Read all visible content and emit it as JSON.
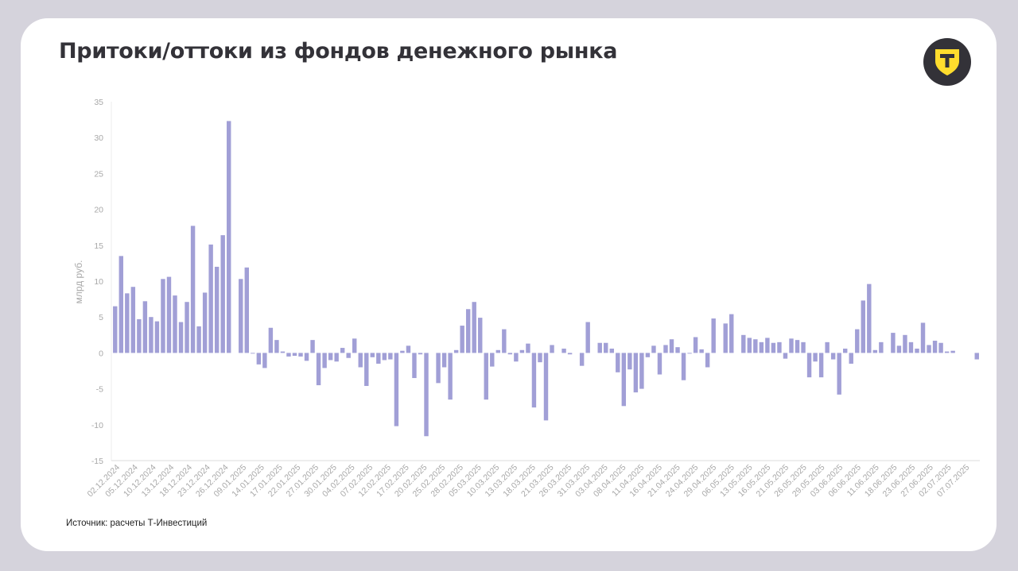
{
  "title": "Притоки/оттоки из фондов денежного рынка",
  "source": "Источник: расчеты Т-Инвестиций",
  "colors": {
    "bar": "#a19fd6",
    "background": "#d5d3dc",
    "card": "#ffffff",
    "text": "#333238",
    "logo_bg": "#333238",
    "logo_shield": "#ffdd2d"
  },
  "logo_icon": "t-bank-shield-icon",
  "chart_data": {
    "type": "bar",
    "title": "",
    "xlabel": "",
    "ylabel": "млрд руб.",
    "ylim": [
      -15,
      35
    ],
    "yticks": [
      35,
      30,
      25,
      20,
      15,
      10,
      5,
      0,
      -5,
      -10,
      -15
    ],
    "grid": false,
    "legend": "none",
    "x_tick_labels": [
      "02.12.2024",
      "05.12.2024",
      "10.12.2024",
      "13.12.2024",
      "18.12.2024",
      "23.12.2024",
      "26.12.2024",
      "09.01.2025",
      "14.01.2025",
      "17.01.2025",
      "22.01.2025",
      "27.01.2025",
      "30.01.2025",
      "04.02.2025",
      "07.02.2025",
      "12.02.2025",
      "17.02.2025",
      "20.02.2025",
      "25.02.2025",
      "28.02.2025",
      "05.03.2025",
      "10.03.2025",
      "13.03.2025",
      "18.03.2025",
      "21.03.2025",
      "26.03.2025",
      "31.03.2025",
      "03.04.2025",
      "08.04.2025",
      "11.04.2025",
      "16.04.2025",
      "21.04.2025",
      "24.04.2025",
      "29.04.2025",
      "06.05.2025",
      "13.05.2025",
      "16.05.2025",
      "21.05.2025",
      "26.05.2025",
      "29.05.2025",
      "03.06.2025",
      "06.06.2025",
      "11.06.2025",
      "18.06.2025",
      "23.06.2025",
      "27.06.2025",
      "02.07.2025",
      "07.07.2025"
    ],
    "values": [
      6.5,
      13.5,
      8.3,
      9.2,
      4.7,
      7.2,
      5.0,
      4.4,
      10.3,
      10.6,
      8.0,
      4.3,
      7.1,
      17.7,
      3.7,
      8.4,
      15.1,
      12.0,
      16.4,
      32.3,
      null,
      10.3,
      11.9,
      -0.1,
      -1.6,
      -2.1,
      3.5,
      1.8,
      0.2,
      -0.5,
      -0.4,
      -0.5,
      -1.1,
      1.8,
      -4.5,
      -2.1,
      -1.0,
      -1.2,
      0.7,
      -0.7,
      2.0,
      -2.0,
      -4.6,
      -0.6,
      -1.5,
      -1.0,
      -0.9,
      -10.2,
      0.3,
      1.0,
      -3.5,
      -0.2,
      -11.6,
      null,
      -4.2,
      -2.0,
      -6.5,
      0.4,
      3.8,
      6.1,
      7.1,
      4.9,
      -6.5,
      -1.9,
      0.4,
      3.3,
      -0.2,
      -1.2,
      0.4,
      1.3,
      -7.6,
      -1.3,
      -9.4,
      1.1,
      null,
      0.6,
      -0.2,
      null,
      -1.8,
      4.3,
      null,
      1.4,
      1.4,
      0.6,
      -2.7,
      -7.4,
      -2.3,
      -5.5,
      -5.0,
      -0.6,
      1.0,
      -3.0,
      1.1,
      1.9,
      0.8,
      -3.8,
      -0.1,
      2.2,
      0.5,
      -2.0,
      4.8,
      null,
      4.1,
      5.4,
      null,
      2.5,
      2.1,
      1.9,
      1.5,
      2.1,
      1.4,
      1.5,
      -0.8,
      2.0,
      1.8,
      1.5,
      -3.4,
      -1.2,
      -3.4,
      1.5,
      -0.9,
      -5.8,
      0.6,
      -1.5,
      3.3,
      7.3,
      9.6,
      0.4,
      1.5,
      null,
      2.8,
      1.0,
      2.5,
      1.5,
      0.6,
      4.2,
      1.1,
      1.7,
      1.4,
      0.2,
      0.3,
      null,
      null,
      null,
      -0.9
    ]
  }
}
